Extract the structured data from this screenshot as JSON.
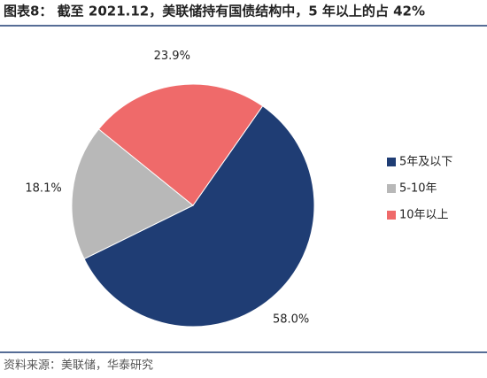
{
  "chart_data": {
    "type": "pie",
    "title": "图表8：   截至 2021.12，美联储持有国债结构中，5 年以上的占 42%",
    "source": "资料来源：美联储，华泰研究",
    "categories": [
      "5年及以下",
      "5-10年",
      "10年以上"
    ],
    "values": [
      58.0,
      18.1,
      23.9
    ],
    "value_labels": [
      "58.0%",
      "18.1%",
      "23.9%"
    ],
    "colors": [
      "#1f3d74",
      "#b8b8b8",
      "#ef6a6a"
    ],
    "legend": "right"
  }
}
